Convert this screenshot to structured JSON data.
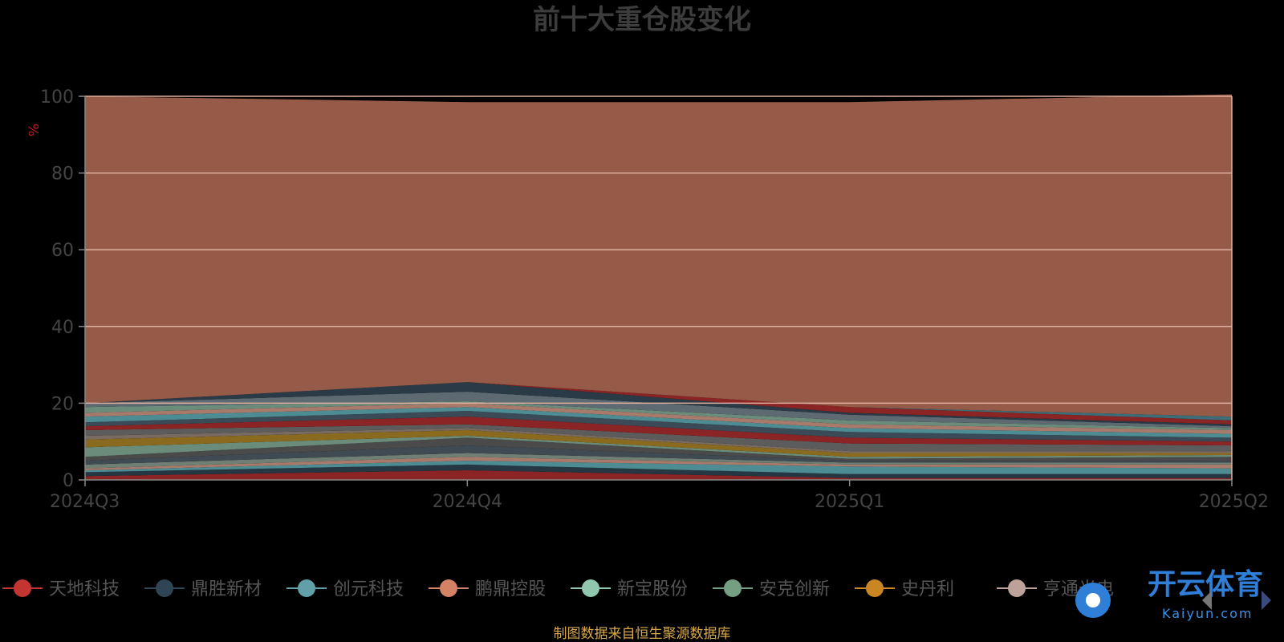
{
  "chart_data": {
    "type": "area",
    "title": "前十大重仓股变化",
    "ylabel": "%",
    "ylim": [
      0,
      100
    ],
    "yticks": [
      "0",
      "20",
      "40",
      "60",
      "80",
      "100"
    ],
    "categories": [
      "2024Q3",
      "2024Q4",
      "2025Q1",
      "2025Q2"
    ],
    "stacked": true,
    "grid": true,
    "legend_position": "bottom",
    "series": [
      {
        "name": "天地科技",
        "color": "#8b2424",
        "values": [
          1.0,
          2.5,
          0.5,
          0.5
        ]
      },
      {
        "name": "鼎胜新材",
        "color": "#263744",
        "values": [
          1.0,
          1.5,
          1.0,
          1.0
        ]
      },
      {
        "name": "创元科技",
        "color": "#4e8c93",
        "values": [
          0.5,
          1.0,
          2.0,
          1.5
        ]
      },
      {
        "name": "鹏鼎控股",
        "color": "#a87a6c",
        "values": [
          0.5,
          1.0,
          0.5,
          1.0
        ]
      },
      {
        "name": "新宝股份",
        "color": "#6f7f73",
        "values": [
          1.0,
          1.0,
          0.5,
          0.5
        ]
      },
      {
        "name": "安克创新",
        "color": "#3f4a52",
        "values": [
          1.0,
          2.0,
          0.5,
          0.5
        ]
      },
      {
        "name": "史丹利",
        "color": "#4a4a4a",
        "values": [
          1.0,
          2.0,
          0.5,
          1.0
        ]
      },
      {
        "name": "亨通光电",
        "color": "#6b8c7a",
        "values": [
          2.5,
          0.5,
          0.5,
          0.5
        ]
      },
      {
        "name": "",
        "color": "#8a6a1e",
        "values": [
          2.0,
          1.5,
          1.0,
          0.5
        ]
      },
      {
        "name": "",
        "color": "#7a6b62",
        "values": [
          1.0,
          0.5,
          0.5,
          0.5
        ]
      },
      {
        "name": "",
        "color": "#5c5c5c",
        "values": [
          1.5,
          1.0,
          2.0,
          1.5
        ]
      },
      {
        "name": "",
        "color": "#8b2424",
        "values": [
          1.0,
          2.0,
          1.5,
          1.0
        ]
      },
      {
        "name": "",
        "color": "#3a4a56",
        "values": [
          1.0,
          1.5,
          1.5,
          1.0
        ]
      },
      {
        "name": "",
        "color": "#4e8c93",
        "values": [
          1.5,
          1.0,
          1.0,
          1.0
        ]
      },
      {
        "name": "",
        "color": "#a87a6c",
        "values": [
          1.0,
          1.0,
          1.0,
          1.0
        ]
      },
      {
        "name": "",
        "color": "#6b8c7a",
        "values": [
          1.5,
          0.5,
          1.0,
          0.5
        ]
      },
      {
        "name": "",
        "color": "#5e6a72",
        "values": [
          1.0,
          2.5,
          1.5,
          0.5
        ]
      },
      {
        "name": "",
        "color": "#2a3a46",
        "values": [
          0.0,
          2.5,
          0.5,
          0.5
        ]
      },
      {
        "name": "",
        "color": "#8b2424",
        "values": [
          0.0,
          0.0,
          1.5,
          1.0
        ]
      },
      {
        "name": "",
        "color": "#3d6e78",
        "values": [
          0.0,
          0.0,
          0.0,
          1.0
        ]
      },
      {
        "name": "",
        "color": "#955b48",
        "values": [
          80.0,
          73.0,
          79.5,
          84.0
        ]
      }
    ]
  },
  "legend": [
    {
      "name": "天地科技",
      "color": "#c23531"
    },
    {
      "name": "鼎胜新材",
      "color": "#2f4554"
    },
    {
      "name": "创元科技",
      "color": "#61a0a8"
    },
    {
      "name": "鹏鼎控股",
      "color": "#d48265"
    },
    {
      "name": "新宝股份",
      "color": "#91c7ae"
    },
    {
      "name": "安克创新",
      "color": "#749f83"
    },
    {
      "name": "史丹利",
      "color": "#ca8622"
    },
    {
      "name": "亨通光电",
      "color": "#bda29a"
    }
  ],
  "source": "制图数据来自恒生聚源数据库",
  "logo": {
    "main": "开云体育",
    "sub": "Kaiyun.com"
  }
}
